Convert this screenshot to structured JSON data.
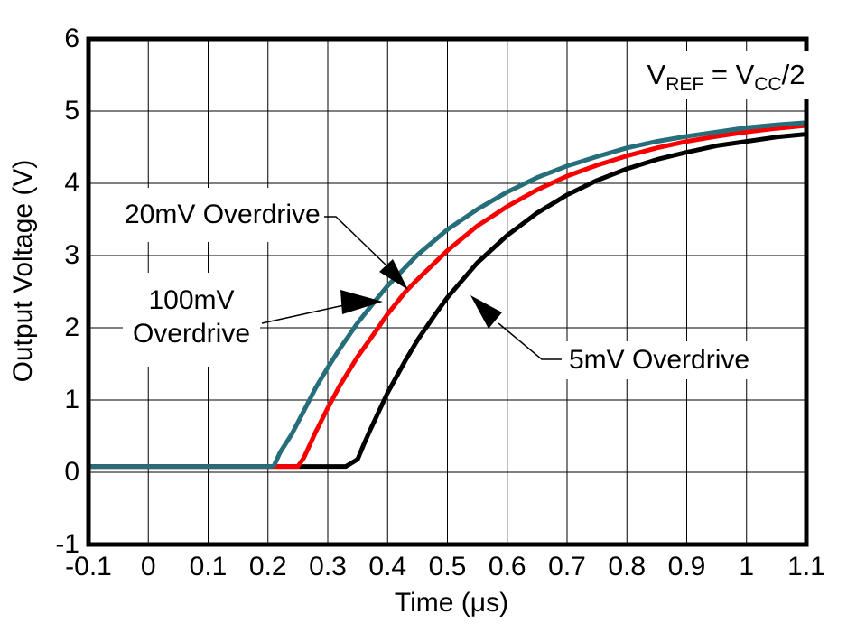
{
  "chart_data": {
    "type": "line",
    "xlabel": "Time (μs)",
    "ylabel": "Output Voltage (V)",
    "xlim": [
      -0.1,
      1.1
    ],
    "ylim": [
      -1,
      6
    ],
    "grid": true,
    "grid_color": "#000000",
    "background": "#ffffff",
    "xticks": {
      "values": [
        -0.1,
        0,
        0.1,
        0.2,
        0.3,
        0.4,
        0.5,
        0.6,
        0.7,
        0.8,
        0.9,
        1,
        1.1
      ],
      "labels": [
        "-0.1",
        "0",
        "0.1",
        "0.2",
        "0.3",
        "0.4",
        "0.5",
        "0.6",
        "0.7",
        "0.8",
        "0.9",
        "1",
        "1.1"
      ]
    },
    "yticks": {
      "values": [
        6,
        5,
        4,
        3,
        2,
        1,
        0,
        -1
      ],
      "labels": [
        "6",
        "5",
        "4",
        "3",
        "2",
        "1",
        "0",
        "-1"
      ]
    },
    "series": [
      {
        "name": "5mV Overdrive",
        "color": "#000000",
        "points": [
          [
            -0.1,
            0.08
          ],
          [
            -0.05,
            0.08
          ],
          [
            0.0,
            0.08
          ],
          [
            0.05,
            0.08
          ],
          [
            0.1,
            0.08
          ],
          [
            0.15,
            0.08
          ],
          [
            0.2,
            0.08
          ],
          [
            0.25,
            0.08
          ],
          [
            0.3,
            0.08
          ],
          [
            0.33,
            0.08
          ],
          [
            0.35,
            0.18
          ],
          [
            0.36,
            0.38
          ],
          [
            0.37,
            0.57
          ],
          [
            0.4,
            1.1
          ],
          [
            0.43,
            1.55
          ],
          [
            0.45,
            1.83
          ],
          [
            0.48,
            2.19
          ],
          [
            0.5,
            2.42
          ],
          [
            0.55,
            2.9
          ],
          [
            0.6,
            3.28
          ],
          [
            0.65,
            3.59
          ],
          [
            0.7,
            3.84
          ],
          [
            0.75,
            4.04
          ],
          [
            0.8,
            4.2
          ],
          [
            0.85,
            4.33
          ],
          [
            0.9,
            4.43
          ],
          [
            0.95,
            4.52
          ],
          [
            1.0,
            4.58
          ],
          [
            1.05,
            4.64
          ],
          [
            1.1,
            4.68
          ]
        ]
      },
      {
        "name": "20mV Overdrive",
        "color": "#F80000",
        "points": [
          [
            -0.1,
            0.08
          ],
          [
            -0.05,
            0.08
          ],
          [
            0.0,
            0.08
          ],
          [
            0.05,
            0.08
          ],
          [
            0.1,
            0.08
          ],
          [
            0.15,
            0.08
          ],
          [
            0.2,
            0.08
          ],
          [
            0.25,
            0.08
          ],
          [
            0.26,
            0.2
          ],
          [
            0.28,
            0.56
          ],
          [
            0.3,
            0.89
          ],
          [
            0.32,
            1.2
          ],
          [
            0.35,
            1.6
          ],
          [
            0.38,
            1.95
          ],
          [
            0.4,
            2.19
          ],
          [
            0.43,
            2.5
          ],
          [
            0.45,
            2.67
          ],
          [
            0.5,
            3.07
          ],
          [
            0.55,
            3.41
          ],
          [
            0.6,
            3.68
          ],
          [
            0.65,
            3.91
          ],
          [
            0.7,
            4.1
          ],
          [
            0.75,
            4.25
          ],
          [
            0.8,
            4.38
          ],
          [
            0.85,
            4.49
          ],
          [
            0.9,
            4.58
          ],
          [
            0.95,
            4.65
          ],
          [
            1.0,
            4.71
          ],
          [
            1.05,
            4.76
          ],
          [
            1.1,
            4.8
          ]
        ]
      },
      {
        "name": "100mV Overdrive",
        "color": "#256E7A",
        "points": [
          [
            -0.1,
            0.08
          ],
          [
            -0.05,
            0.08
          ],
          [
            0.0,
            0.08
          ],
          [
            0.05,
            0.08
          ],
          [
            0.1,
            0.08
          ],
          [
            0.15,
            0.08
          ],
          [
            0.2,
            0.08
          ],
          [
            0.21,
            0.09
          ],
          [
            0.22,
            0.27
          ],
          [
            0.24,
            0.53
          ],
          [
            0.26,
            0.85
          ],
          [
            0.28,
            1.17
          ],
          [
            0.3,
            1.45
          ],
          [
            0.32,
            1.71
          ],
          [
            0.35,
            2.07
          ],
          [
            0.38,
            2.38
          ],
          [
            0.4,
            2.58
          ],
          [
            0.45,
            3.01
          ],
          [
            0.5,
            3.36
          ],
          [
            0.55,
            3.64
          ],
          [
            0.6,
            3.88
          ],
          [
            0.65,
            4.08
          ],
          [
            0.7,
            4.24
          ],
          [
            0.75,
            4.37
          ],
          [
            0.8,
            4.49
          ],
          [
            0.85,
            4.58
          ],
          [
            0.9,
            4.65
          ],
          [
            0.95,
            4.71
          ],
          [
            1.0,
            4.77
          ],
          [
            1.05,
            4.81
          ],
          [
            1.1,
            4.84
          ]
        ]
      }
    ],
    "curve_labels": [
      {
        "text": "20mV Overdrive",
        "series": "20mV Overdrive"
      },
      {
        "text": "100mV\nOverdrive",
        "series": "100mV Overdrive"
      },
      {
        "text": "5mV Overdrive",
        "series": "5mV Overdrive"
      }
    ]
  },
  "annotations": {
    "vref": {
      "v1": "V",
      "sub1": "REF",
      "mid": " = ",
      "v2": "V",
      "sub2": "CC",
      "tail": "/2"
    }
  }
}
